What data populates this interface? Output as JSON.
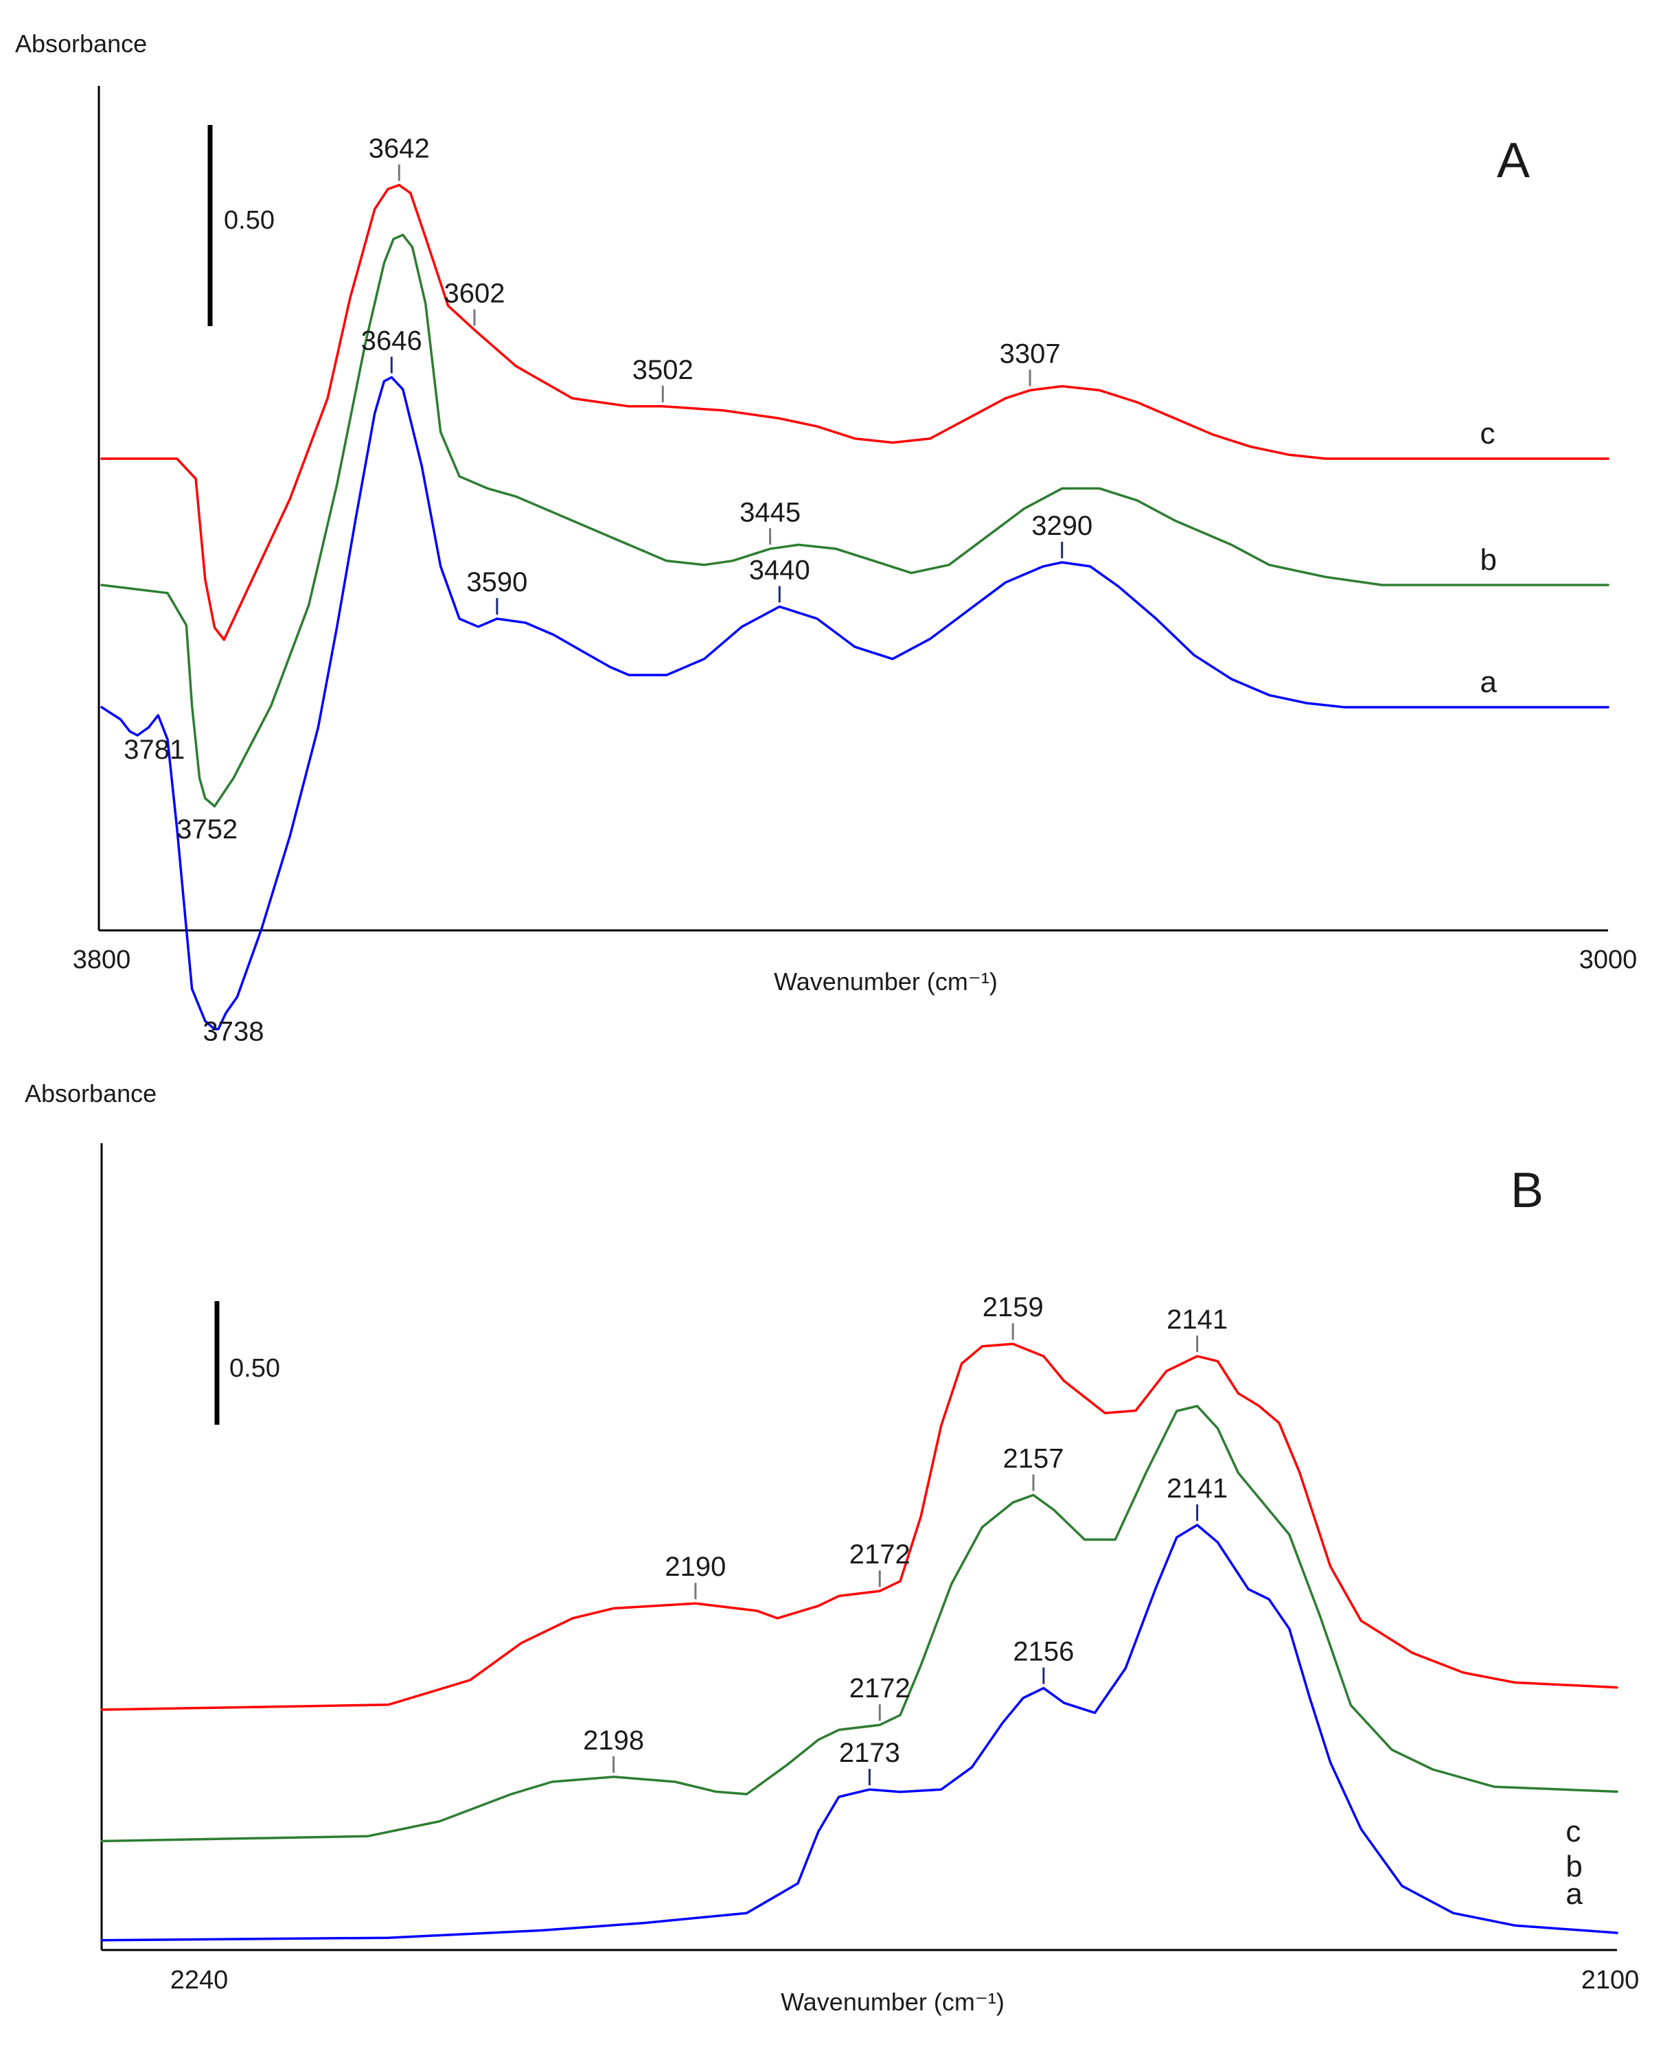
{
  "chart_data": [
    {
      "type": "line",
      "panel": "A",
      "ylabel": "Absorbance",
      "xlabel": "Wavenumber (cm⁻¹)",
      "xlim": [
        3800,
        3000
      ],
      "x_tick_labels": [
        "3800",
        "3000"
      ],
      "scale_bar_label": "0.50",
      "scale_bar_value": 0.5,
      "ylim": [
        -0.72,
        1.45
      ],
      "series": [
        {
          "name": "c",
          "color": "#ff0000",
          "x": [
            3800,
            3760,
            3750,
            3745,
            3740,
            3735,
            3730,
            3720,
            3700,
            3680,
            3668,
            3655,
            3648,
            3642,
            3636,
            3628,
            3616,
            3602,
            3580,
            3550,
            3520,
            3502,
            3470,
            3440,
            3420,
            3400,
            3380,
            3360,
            3340,
            3320,
            3307,
            3290,
            3270,
            3250,
            3230,
            3210,
            3190,
            3170,
            3150,
            3120,
            3100,
            3000
          ],
          "y": [
            0,
            0,
            -0.05,
            -0.3,
            -0.42,
            -0.45,
            -0.4,
            -0.3,
            -0.1,
            0.15,
            0.4,
            0.62,
            0.67,
            0.68,
            0.66,
            0.55,
            0.38,
            0.32,
            0.23,
            0.15,
            0.13,
            0.13,
            0.12,
            0.1,
            0.08,
            0.05,
            0.04,
            0.05,
            0.1,
            0.15,
            0.17,
            0.18,
            0.17,
            0.14,
            0.1,
            0.06,
            0.03,
            0.01,
            0,
            0,
            0,
            0
          ]
        },
        {
          "name": "b",
          "color": "#2e7d32",
          "x": [
            3800,
            3765,
            3755,
            3752,
            3748,
            3745,
            3740,
            3730,
            3710,
            3690,
            3675,
            3660,
            3650,
            3645,
            3640,
            3635,
            3628,
            3620,
            3610,
            3595,
            3580,
            3560,
            3540,
            3520,
            3500,
            3480,
            3465,
            3445,
            3430,
            3410,
            3390,
            3370,
            3350,
            3330,
            3310,
            3290,
            3270,
            3250,
            3230,
            3200,
            3180,
            3150,
            3120,
            3100,
            3000
          ],
          "y": [
            0,
            -0.02,
            -0.1,
            -0.3,
            -0.48,
            -0.53,
            -0.55,
            -0.48,
            -0.3,
            -0.05,
            0.25,
            0.6,
            0.8,
            0.86,
            0.87,
            0.84,
            0.7,
            0.38,
            0.27,
            0.24,
            0.22,
            0.18,
            0.14,
            0.1,
            0.06,
            0.05,
            0.06,
            0.09,
            0.1,
            0.09,
            0.06,
            0.03,
            0.05,
            0.12,
            0.19,
            0.24,
            0.24,
            0.21,
            0.16,
            0.1,
            0.05,
            0.02,
            0,
            0,
            0
          ]
        },
        {
          "name": "a",
          "color": "#0000ff",
          "x": [
            3800,
            3790,
            3785,
            3781,
            3775,
            3770,
            3765,
            3760,
            3752,
            3745,
            3740,
            3738,
            3734,
            3728,
            3715,
            3700,
            3685,
            3675,
            3665,
            3655,
            3650,
            3646,
            3640,
            3630,
            3620,
            3610,
            3600,
            3590,
            3575,
            3560,
            3545,
            3530,
            3520,
            3500,
            3480,
            3460,
            3440,
            3420,
            3400,
            3380,
            3360,
            3340,
            3320,
            3300,
            3290,
            3275,
            3260,
            3240,
            3220,
            3200,
            3180,
            3160,
            3140,
            3120,
            3100,
            3000
          ],
          "y": [
            0,
            -0.03,
            -0.06,
            -0.07,
            -0.05,
            -0.02,
            -0.08,
            -0.3,
            -0.7,
            -0.78,
            -0.8,
            -0.8,
            -0.76,
            -0.72,
            -0.55,
            -0.32,
            -0.05,
            0.2,
            0.47,
            0.73,
            0.81,
            0.82,
            0.79,
            0.6,
            0.35,
            0.22,
            0.2,
            0.22,
            0.21,
            0.18,
            0.14,
            0.1,
            0.08,
            0.08,
            0.12,
            0.2,
            0.25,
            0.22,
            0.15,
            0.12,
            0.17,
            0.24,
            0.31,
            0.35,
            0.36,
            0.35,
            0.3,
            0.22,
            0.13,
            0.07,
            0.03,
            0.01,
            0,
            0,
            0,
            0
          ]
        }
      ],
      "curve_labels": [
        {
          "text": "c",
          "x": 3068,
          "y": 0.08
        },
        {
          "text": "b",
          "x": 3068,
          "y": 0.08
        },
        {
          "text": "a",
          "x": 3068,
          "y": 0.08
        }
      ],
      "annotations": [
        {
          "text": "3642",
          "series": "c",
          "x": 3642,
          "tick": true
        },
        {
          "text": "3602",
          "series": "c",
          "x": 3602,
          "tick": true
        },
        {
          "text": "3502",
          "series": "c",
          "x": 3502,
          "tick": true
        },
        {
          "text": "3307",
          "series": "c",
          "x": 3307,
          "tick": true
        },
        {
          "text": "3445",
          "series": "b",
          "x": 3445,
          "tick": true
        },
        {
          "text": "3646",
          "series": "a",
          "x": 3646,
          "tick": true
        },
        {
          "text": "3590",
          "series": "a",
          "x": 3590,
          "tick": true
        },
        {
          "text": "3440",
          "series": "a",
          "x": 3440,
          "tick": true
        },
        {
          "text": "3290",
          "series": "a",
          "x": 3290,
          "tick": true
        },
        {
          "text": "3781",
          "series": "a",
          "x": 3772,
          "below": true,
          "tick": false
        },
        {
          "text": "3752",
          "series": "b",
          "x": 3744,
          "below": true,
          "tick": false
        },
        {
          "text": "3738",
          "series": "a",
          "x": 3730,
          "below": true,
          "tick": false
        }
      ]
    },
    {
      "type": "line",
      "panel": "B",
      "ylabel": "Absorbance",
      "xlabel": "Wavenumber (cm⁻¹)",
      "xlim": [
        2248,
        2100
      ],
      "x_tick_labels": [
        "2240",
        "2100"
      ],
      "x_tick_values": [
        2240,
        2100
      ],
      "scale_bar_label": "0.50",
      "scale_bar_value": 0.5,
      "ylim": [
        -0.05,
        2.35
      ],
      "series": [
        {
          "name": "c",
          "color": "#ff0000",
          "x": [
            2248,
            2220,
            2212,
            2207,
            2202,
            2198,
            2190,
            2184,
            2182,
            2178,
            2176,
            2172,
            2170,
            2168,
            2166,
            2164,
            2162,
            2159,
            2156,
            2154,
            2150,
            2147,
            2144,
            2141,
            2139,
            2137,
            2135,
            2133,
            2131,
            2128,
            2125,
            2120,
            2115,
            2110,
            2100
          ],
          "y": [
            0.7,
            0.72,
            0.82,
            0.97,
            1.07,
            1.11,
            1.13,
            1.1,
            1.07,
            1.12,
            1.16,
            1.18,
            1.22,
            1.48,
            1.85,
            2.1,
            2.17,
            2.18,
            2.13,
            2.03,
            1.9,
            1.91,
            2.07,
            2.13,
            2.11,
            1.98,
            1.93,
            1.86,
            1.66,
            1.28,
            1.06,
            0.93,
            0.85,
            0.81,
            0.79
          ]
        },
        {
          "name": "b",
          "color": "#2e7d32",
          "x": [
            2248,
            2222,
            2215,
            2208,
            2204,
            2198,
            2192,
            2188,
            2185,
            2181,
            2178,
            2176,
            2172,
            2170,
            2168,
            2165,
            2162,
            2159,
            2157,
            2155,
            2152,
            2149,
            2146,
            2143,
            2141,
            2139,
            2137,
            2135,
            2132,
            2129,
            2126,
            2122,
            2118,
            2112,
            2100
          ],
          "y": [
            0.31,
            0.33,
            0.39,
            0.5,
            0.55,
            0.57,
            0.55,
            0.51,
            0.5,
            0.62,
            0.72,
            0.76,
            0.78,
            0.82,
            1.02,
            1.35,
            1.58,
            1.68,
            1.71,
            1.65,
            1.53,
            1.53,
            1.8,
            2.05,
            2.07,
            1.98,
            1.8,
            1.7,
            1.55,
            1.22,
            0.86,
            0.68,
            0.6,
            0.53,
            0.51
          ]
        },
        {
          "name": "a",
          "color": "#0000ff",
          "x": [
            2248,
            2220,
            2205,
            2195,
            2185,
            2180,
            2178,
            2176,
            2173,
            2170,
            2166,
            2163,
            2160,
            2158,
            2156,
            2154,
            2151,
            2148,
            2145,
            2143,
            2141,
            2139,
            2136,
            2134,
            2132,
            2130,
            2128,
            2125,
            2121,
            2116,
            2110,
            2100
          ],
          "y": [
            0.02,
            0.03,
            0.06,
            0.09,
            0.13,
            0.25,
            0.46,
            0.6,
            0.63,
            0.62,
            0.63,
            0.72,
            0.9,
            1.0,
            1.04,
            0.98,
            0.94,
            1.12,
            1.45,
            1.65,
            1.7,
            1.63,
            1.44,
            1.4,
            1.28,
            1.0,
            0.74,
            0.47,
            0.24,
            0.13,
            0.08,
            0.05
          ]
        }
      ],
      "curve_labels": [
        {
          "text": "c",
          "x": 2105
        },
        {
          "text": "b",
          "x": 2105
        },
        {
          "text": "a",
          "x": 2105
        }
      ],
      "annotations": [
        {
          "text": "2159",
          "series": "c",
          "x": 2159,
          "tick": true
        },
        {
          "text": "2141",
          "series": "c",
          "x": 2141,
          "tick": true
        },
        {
          "text": "2190",
          "series": "c",
          "x": 2190,
          "tick": true
        },
        {
          "text": "2172",
          "series": "c",
          "x": 2172,
          "tick": true
        },
        {
          "text": "2157",
          "series": "b",
          "x": 2157,
          "tick": true
        },
        {
          "text": "2172",
          "series": "b",
          "x": 2172,
          "tick": true
        },
        {
          "text": "2198",
          "series": "b",
          "x": 2198,
          "tick": true
        },
        {
          "text": "2141",
          "series": "a",
          "x": 2141,
          "tick": true
        },
        {
          "text": "2156",
          "series": "a",
          "x": 2156,
          "tick": true
        },
        {
          "text": "2173",
          "series": "a",
          "x": 2173,
          "tick": true
        }
      ]
    }
  ]
}
